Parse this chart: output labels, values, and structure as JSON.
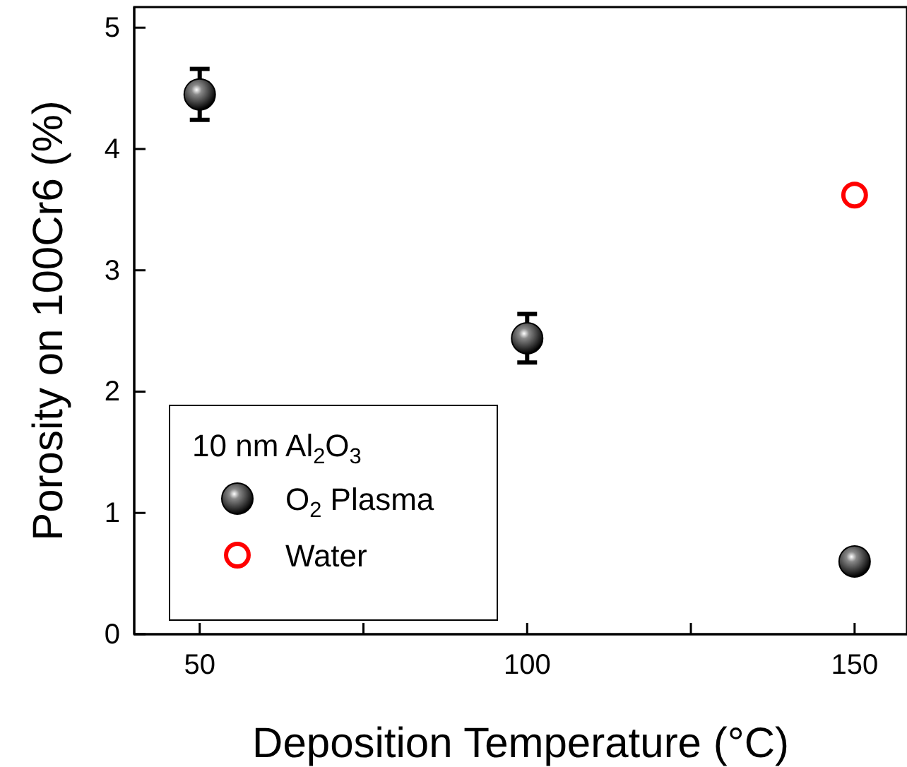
{
  "chart_data": {
    "type": "scatter",
    "xlabel": "Deposition Temperature (°C)",
    "ylabel": "Porosity on 100Cr6 (%)",
    "legend_title": "10 nm Al$_{2}$O$_{3}$",
    "xlim": [
      40,
      158
    ],
    "xticks": [
      50,
      {
        "value": 75,
        "label": null
      },
      100,
      {
        "value": 125,
        "label": null
      },
      150
    ],
    "ylim": [
      0,
      5.17
    ],
    "yticks": [
      0,
      1,
      2,
      3,
      4,
      5
    ],
    "grid": false,
    "legend": "bottom left",
    "marker": "circle",
    "series": [
      {
        "name": "O$_{2}$ Plasma",
        "color": "#000000",
        "x": [
          50,
          100,
          150
        ],
        "values": [
          4.45,
          2.44,
          0.6
        ],
        "errors": [
          0.21,
          0.2,
          0.06
        ]
      },
      {
        "name": "Water",
        "color": "#ff0000",
        "x": [
          150
        ],
        "values": [
          3.62
        ]
      }
    ]
  }
}
